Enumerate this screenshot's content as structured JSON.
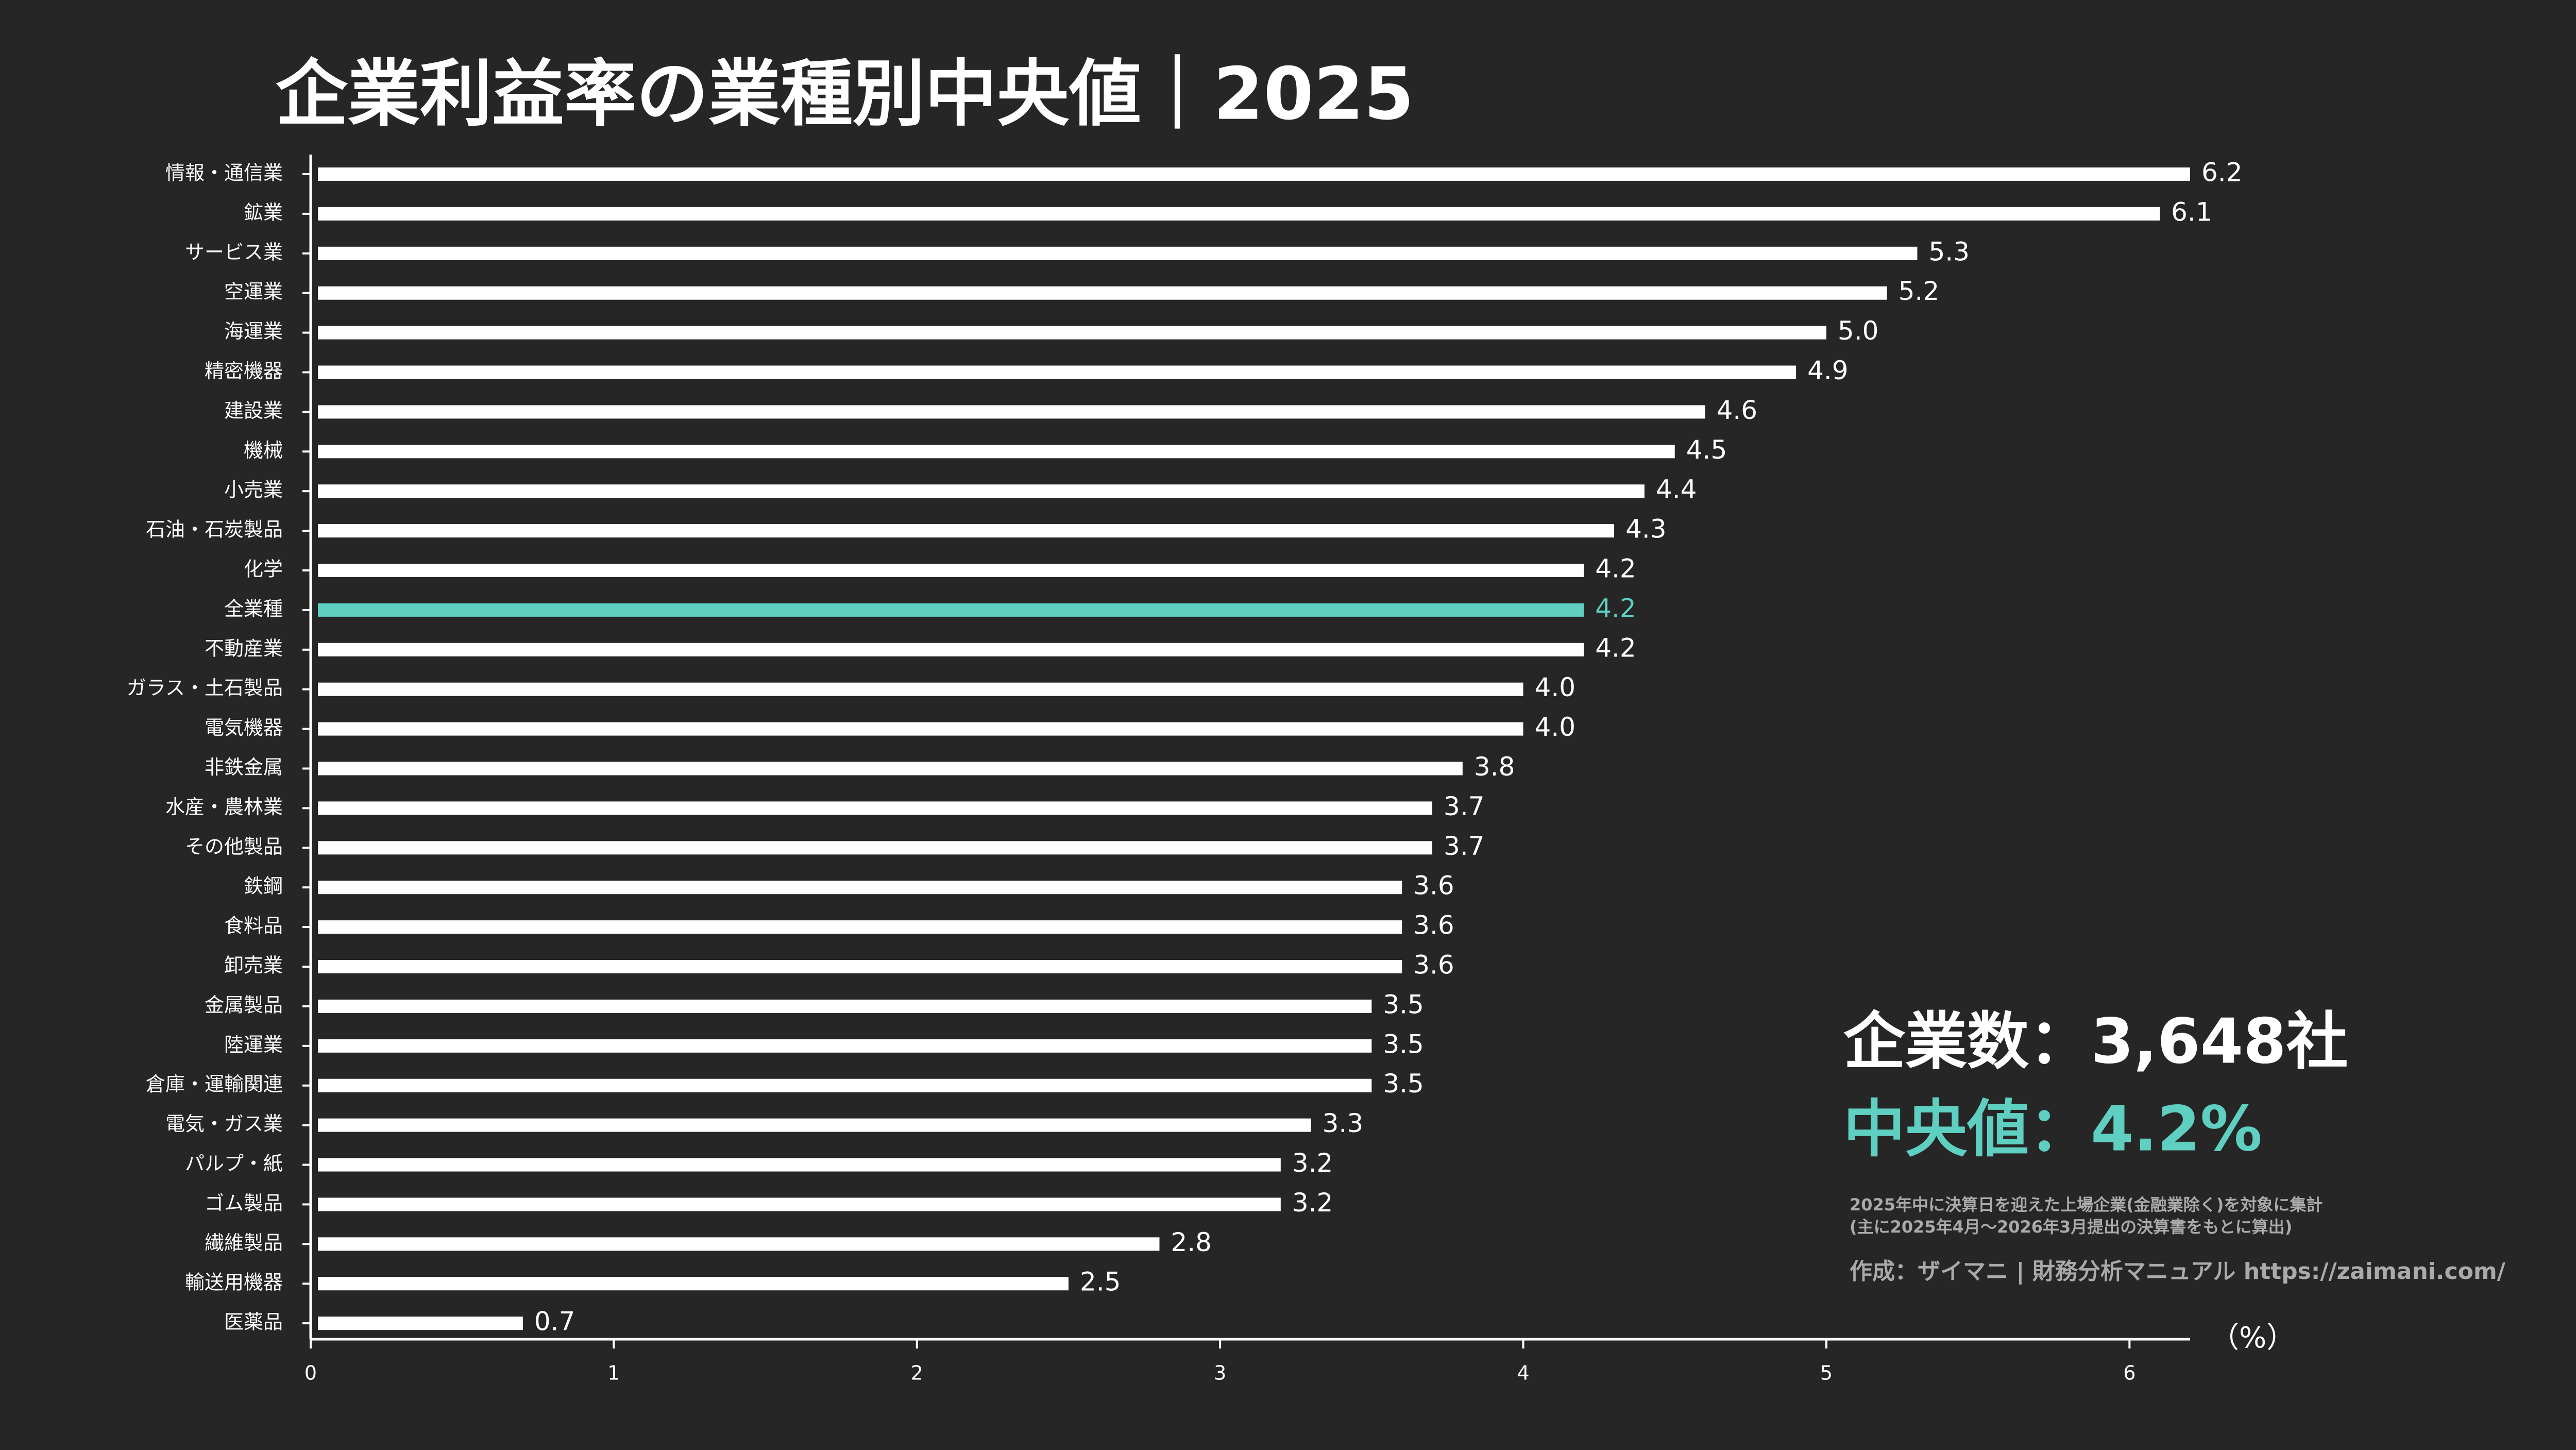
{
  "chart_data": {
    "type": "hbar",
    "title": "企業利益率の業種別中央値｜2025",
    "categories": [
      "情報・通信業",
      "鉱業",
      "サービス業",
      "空運業",
      "海運業",
      "精密機器",
      "建設業",
      "機械",
      "小売業",
      "石油・石炭製品",
      "化学",
      "全業種",
      "不動産業",
      "ガラス・土石製品",
      "電気機器",
      "非鉄金属",
      "水産・農林業",
      "その他製品",
      "鉄鋼",
      "食料品",
      "卸売業",
      "金属製品",
      "陸運業",
      "倉庫・運輸関連",
      "電気・ガス業",
      "パルプ・紙",
      "ゴム製品",
      "繊維製品",
      "輸送用機器",
      "医薬品"
    ],
    "values": [
      6.2,
      6.1,
      5.3,
      5.2,
      5.0,
      4.9,
      4.6,
      4.5,
      4.4,
      4.3,
      4.2,
      4.2,
      4.2,
      4.0,
      4.0,
      3.8,
      3.7,
      3.7,
      3.6,
      3.6,
      3.6,
      3.5,
      3.5,
      3.5,
      3.3,
      3.2,
      3.2,
      2.8,
      2.5,
      0.7
    ],
    "value_labels": [
      "6.2",
      "6.1",
      "5.3",
      "5.2",
      "5.0",
      "4.9",
      "4.6",
      "4.5",
      "4.4",
      "4.3",
      "4.2",
      "4.2",
      "4.2",
      "4.0",
      "4.0",
      "3.8",
      "3.7",
      "3.7",
      "3.6",
      "3.6",
      "3.6",
      "3.5",
      "3.5",
      "3.5",
      "3.3",
      "3.2",
      "3.2",
      "2.8",
      "2.5",
      "0.7"
    ],
    "color": "#ffffff",
    "highlight": "全業種",
    "highlight_color": "#5ecfc0",
    "xlim": [
      0,
      6.2
    ],
    "xticks": [
      0,
      1,
      2,
      3,
      4,
      5,
      6
    ],
    "x_unit": "（%）",
    "annotations": [
      "企業数：3,648社",
      "中央値：4.2%"
    ],
    "notes": [
      "2025年中に決算日を迎えた上場企業(金融業除く)を対象に集計",
      "(主に2025年4月～2026年3月提出の決算書をもとに算出)"
    ],
    "credit": "作成：ザイマニ | 財務分析マニュアル https://zaimani.com/"
  }
}
